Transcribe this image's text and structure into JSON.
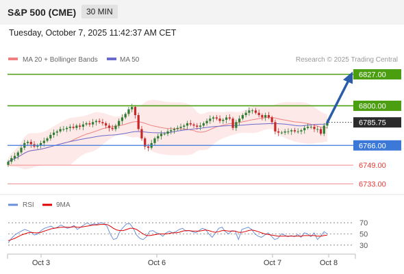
{
  "header": {
    "instrument": "S&P 500 (CME)",
    "timeframe": "30 MIN",
    "timestamp": "Tuesday, October 7, 2025 11:42:37 AM CET"
  },
  "legend": {
    "ma20": "MA 20 + Bollinger Bands",
    "ma50": "MA 50",
    "credit": "Research © 2025 Trading Central",
    "rsi": "RSI",
    "rsi_ma": "9MA"
  },
  "colors": {
    "candle_up": "#2e7d32",
    "candle_down": "#c62828",
    "ma20": "#f08080",
    "ma50": "#6a6acb",
    "bollinger_fill": "#fde2e2",
    "resistance": "#4a9e10",
    "pivot": "#3c78d8",
    "support": "#f28b8b",
    "arrow": "#2a5ca8",
    "rsi": "#6a8fd8",
    "rsi_ma": "#e00000"
  },
  "chart_data": {
    "type": "line",
    "title": "S&P 500 (CME)",
    "timeframe": "30 MIN",
    "ylim": [
      6725,
      6832
    ],
    "x_ticks": [
      "Oct 3",
      "Oct 6",
      "Oct 7",
      "Oct 8"
    ],
    "levels": [
      {
        "label": "6827.00",
        "value": 6827.0,
        "kind": "resistance"
      },
      {
        "label": "6800.00",
        "value": 6800.0,
        "kind": "resistance"
      },
      {
        "label": "6785.75",
        "value": 6785.75,
        "kind": "last"
      },
      {
        "label": "6766.00",
        "value": 6766.0,
        "kind": "pivot"
      },
      {
        "label": "6749.00",
        "value": 6749.0,
        "kind": "support"
      },
      {
        "label": "6733.00",
        "value": 6733.0,
        "kind": "support"
      }
    ],
    "close_series": {
      "name": "S&P 500 (CME)",
      "values": [
        6752,
        6755,
        6757,
        6760,
        6764,
        6768,
        6769,
        6767,
        6765,
        6766,
        6768,
        6770,
        6772,
        6775,
        6777,
        6778,
        6780,
        6780,
        6781,
        6782,
        6781,
        6783,
        6782,
        6784,
        6785,
        6784,
        6786,
        6787,
        6786,
        6785,
        6783,
        6781,
        6780,
        6783,
        6787,
        6790,
        6793,
        6797,
        6799,
        6792,
        6780,
        6772,
        6765,
        6764,
        6768,
        6772,
        6774,
        6776,
        6776,
        6778,
        6779,
        6780,
        6781,
        6782,
        6783,
        6785,
        6784,
        6783,
        6782,
        6783,
        6785,
        6787,
        6789,
        6790,
        6789,
        6787,
        6788,
        6790,
        6789,
        6781,
        6786,
        6789,
        6792,
        6794,
        6796,
        6796,
        6794,
        6792,
        6790,
        6792,
        6790,
        6786,
        6778,
        6777,
        6777,
        6778,
        6778,
        6779,
        6778,
        6778,
        6779,
        6781,
        6782,
        6782,
        6780,
        6780,
        6776,
        6783,
        6785.75
      ],
      "trend_to": 6827.0
    },
    "rsi": {
      "ylim": [
        20,
        80
      ],
      "levels": [
        70,
        50,
        30
      ],
      "series": [
        {
          "name": "RSI",
          "values": [
            34,
            42,
            48,
            52,
            55,
            58,
            56,
            53,
            48,
            50,
            56,
            60,
            62,
            64,
            60,
            62,
            66,
            63,
            60,
            62,
            65,
            58,
            62,
            66,
            70,
            66,
            68,
            67,
            70,
            69,
            64,
            50,
            40,
            42,
            55,
            62,
            68,
            68,
            60,
            48,
            42,
            40,
            45,
            55,
            56,
            52,
            50,
            46,
            52,
            55,
            52,
            54,
            58,
            60,
            55,
            56,
            54,
            52,
            56,
            60,
            58,
            50,
            44,
            52,
            60,
            62,
            54,
            50,
            56,
            55,
            40,
            58,
            60,
            62,
            58,
            50,
            46,
            44,
            48,
            52,
            46,
            40,
            42,
            50,
            48,
            45,
            47,
            45,
            49,
            44,
            52,
            50,
            45,
            52,
            40,
            46,
            54,
            50
          ]
        },
        {
          "name": "9MA",
          "values": [
            38,
            40,
            42,
            45,
            48,
            50,
            52,
            53,
            52,
            52,
            53,
            55,
            57,
            59,
            60,
            61,
            62,
            62,
            62,
            62,
            63,
            62,
            62,
            63,
            64,
            65,
            66,
            66,
            67,
            67,
            67,
            64,
            60,
            57,
            56,
            56,
            58,
            60,
            60,
            58,
            54,
            50,
            47,
            47,
            48,
            49,
            50,
            50,
            50,
            51,
            52,
            52,
            53,
            55,
            56,
            56,
            55,
            55,
            55,
            56,
            57,
            56,
            54,
            53,
            54,
            56,
            56,
            55,
            55,
            55,
            53,
            53,
            54,
            56,
            57,
            56,
            54,
            52,
            50,
            49,
            48,
            47,
            46,
            46,
            46,
            46,
            46,
            46,
            46,
            46,
            47,
            47,
            47,
            47,
            46,
            46,
            47,
            48
          ]
        }
      ]
    }
  }
}
